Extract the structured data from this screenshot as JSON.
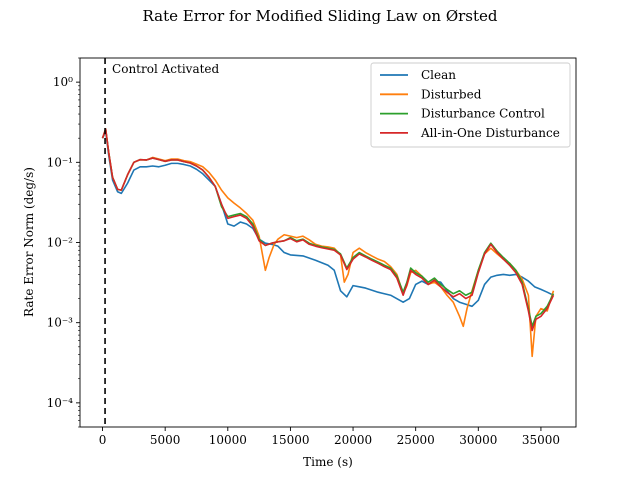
{
  "chart_data": {
    "type": "line",
    "title": "Rate Error for Modified Sliding Law on Ørsted",
    "xlabel": "Time (s)",
    "ylabel": "Rate Error Norm (deg/s)",
    "xlim": [
      -1800,
      37800
    ],
    "ylim": [
      5e-05,
      2.0
    ],
    "yscale": "log",
    "xticks": [
      0,
      5000,
      10000,
      15000,
      20000,
      25000,
      30000,
      35000
    ],
    "xtick_labels": [
      "0",
      "5000",
      "10000",
      "15000",
      "20000",
      "25000",
      "30000",
      "35000"
    ],
    "yticks": [
      0.0001,
      0.001,
      0.01,
      0.1,
      1
    ],
    "ytick_labels": [
      "10⁻⁴",
      "10⁻³",
      "10⁻²",
      "10⁻¹",
      "10⁰"
    ],
    "legend_position": "top-right",
    "grid": false,
    "annotation": {
      "text": "Control Activated",
      "x": 200
    },
    "colors": {
      "Clean": "#1f77b4",
      "Disturbed": "#ff7f0e",
      "Disturbance Control": "#2ca02c",
      "All-in-One Disturbance": "#d62728"
    },
    "series": [
      {
        "name": "Clean",
        "x": [
          0,
          250,
          500,
          800,
          1200,
          1500,
          2000,
          2500,
          3000,
          3500,
          4000,
          4500,
          5000,
          5500,
          6000,
          6500,
          7000,
          7500,
          8000,
          8500,
          9000,
          9500,
          10000,
          10500,
          11000,
          11500,
          12000,
          12500,
          13000,
          13500,
          14000,
          14500,
          15000,
          16000,
          17000,
          18000,
          18500,
          19000,
          19500,
          20000,
          20500,
          21000,
          22000,
          23000,
          24000,
          24500,
          25000,
          25500,
          26000,
          26500,
          27000,
          27500,
          28000,
          28500,
          29000,
          29500,
          30000,
          30500,
          31000,
          31500,
          32000,
          32500,
          33000,
          33500,
          34000,
          34500,
          35000,
          35500,
          36000
        ],
        "y": [
          0.2,
          0.24,
          0.12,
          0.06,
          0.043,
          0.041,
          0.055,
          0.08,
          0.088,
          0.088,
          0.09,
          0.088,
          0.092,
          0.097,
          0.097,
          0.094,
          0.09,
          0.082,
          0.072,
          0.06,
          0.05,
          0.03,
          0.017,
          0.016,
          0.018,
          0.017,
          0.015,
          0.011,
          0.0098,
          0.0095,
          0.009,
          0.0075,
          0.007,
          0.0068,
          0.006,
          0.0052,
          0.0045,
          0.0025,
          0.0021,
          0.0029,
          0.0028,
          0.0027,
          0.0024,
          0.0022,
          0.0018,
          0.002,
          0.003,
          0.0033,
          0.003,
          0.0033,
          0.0032,
          0.0025,
          0.002,
          0.0018,
          0.0017,
          0.0016,
          0.0019,
          0.003,
          0.0037,
          0.0039,
          0.004,
          0.0039,
          0.004,
          0.0037,
          0.0033,
          0.0028,
          0.0026,
          0.0024,
          0.0022
        ]
      },
      {
        "name": "Disturbed",
        "x": [
          0,
          250,
          500,
          800,
          1200,
          1500,
          2000,
          2500,
          3000,
          3500,
          4000,
          4500,
          5000,
          5500,
          6000,
          6500,
          7000,
          7500,
          8000,
          8500,
          9000,
          9500,
          10000,
          10500,
          11000,
          11500,
          12000,
          12500,
          13000,
          13300,
          13700,
          14000,
          14500,
          15000,
          15500,
          16000,
          16500,
          17000,
          17500,
          18000,
          18500,
          19000,
          19300,
          19600,
          20000,
          20500,
          21000,
          21500,
          22000,
          22500,
          23000,
          23500,
          24000,
          24300,
          24600,
          25000,
          25500,
          26000,
          26500,
          27000,
          27500,
          28000,
          28500,
          28800,
          29100,
          29500,
          30000,
          30500,
          31000,
          31500,
          32000,
          32500,
          33000,
          33500,
          34000,
          34300,
          34600,
          35000,
          35500,
          36000
        ],
        "y": [
          0.2,
          0.26,
          0.13,
          0.065,
          0.046,
          0.045,
          0.07,
          0.1,
          0.108,
          0.107,
          0.115,
          0.11,
          0.105,
          0.11,
          0.11,
          0.105,
          0.102,
          0.095,
          0.088,
          0.075,
          0.06,
          0.045,
          0.036,
          0.031,
          0.027,
          0.023,
          0.019,
          0.012,
          0.0045,
          0.0065,
          0.0095,
          0.011,
          0.0125,
          0.012,
          0.0115,
          0.012,
          0.0108,
          0.0095,
          0.009,
          0.0088,
          0.0085,
          0.007,
          0.0032,
          0.004,
          0.0075,
          0.0085,
          0.0075,
          0.0068,
          0.0062,
          0.0058,
          0.005,
          0.004,
          0.0023,
          0.0029,
          0.0042,
          0.0045,
          0.0038,
          0.003,
          0.0032,
          0.0028,
          0.0022,
          0.0018,
          0.0012,
          0.0009,
          0.0015,
          0.0025,
          0.0045,
          0.0072,
          0.0085,
          0.0072,
          0.0062,
          0.0055,
          0.0045,
          0.0035,
          0.0022,
          0.00038,
          0.0012,
          0.0015,
          0.0014,
          0.0025
        ]
      },
      {
        "name": "Disturbance Control",
        "x": [
          0,
          250,
          500,
          800,
          1200,
          1500,
          2000,
          2500,
          3000,
          3500,
          4000,
          4500,
          5000,
          5500,
          6000,
          6500,
          7000,
          7500,
          8000,
          8500,
          9000,
          9500,
          10000,
          10500,
          11000,
          11500,
          12000,
          12500,
          13000,
          13500,
          14000,
          14500,
          15000,
          15500,
          16000,
          16500,
          17000,
          17500,
          18000,
          18500,
          19000,
          19500,
          20000,
          20500,
          21000,
          21500,
          22000,
          22500,
          23000,
          23500,
          24000,
          24300,
          24600,
          25000,
          25500,
          26000,
          26500,
          27000,
          27500,
          28000,
          28500,
          29000,
          29500,
          30000,
          30500,
          31000,
          31500,
          32000,
          32500,
          33000,
          33500,
          34000,
          34300,
          34600,
          35000,
          35500,
          36000
        ],
        "y": [
          0.2,
          0.26,
          0.13,
          0.065,
          0.046,
          0.045,
          0.07,
          0.1,
          0.108,
          0.107,
          0.113,
          0.108,
          0.103,
          0.107,
          0.107,
          0.102,
          0.098,
          0.09,
          0.08,
          0.065,
          0.05,
          0.028,
          0.021,
          0.022,
          0.023,
          0.021,
          0.017,
          0.011,
          0.0092,
          0.0098,
          0.0102,
          0.0105,
          0.0115,
          0.0105,
          0.011,
          0.0098,
          0.0092,
          0.0088,
          0.0085,
          0.0082,
          0.0072,
          0.0048,
          0.0065,
          0.0075,
          0.0068,
          0.0062,
          0.0057,
          0.0052,
          0.0048,
          0.0038,
          0.0024,
          0.0032,
          0.0048,
          0.0042,
          0.0038,
          0.0032,
          0.0036,
          0.003,
          0.0026,
          0.0023,
          0.0025,
          0.0022,
          0.0024,
          0.0045,
          0.0075,
          0.0098,
          0.0078,
          0.0065,
          0.0055,
          0.0045,
          0.0032,
          0.0015,
          0.0009,
          0.0012,
          0.0013,
          0.0016,
          0.0023
        ]
      },
      {
        "name": "All-in-One Disturbance",
        "x": [
          0,
          250,
          500,
          800,
          1200,
          1500,
          2000,
          2500,
          3000,
          3500,
          4000,
          4500,
          5000,
          5500,
          6000,
          6500,
          7000,
          7500,
          8000,
          8500,
          9000,
          9500,
          10000,
          10500,
          11000,
          11500,
          12000,
          12500,
          13000,
          13500,
          14000,
          14500,
          15000,
          15500,
          16000,
          16500,
          17000,
          17500,
          18000,
          18500,
          19000,
          19500,
          20000,
          20500,
          21000,
          21500,
          22000,
          22500,
          23000,
          23500,
          24000,
          24300,
          24600,
          25000,
          25500,
          26000,
          26500,
          27000,
          27500,
          28000,
          28500,
          29000,
          29500,
          30000,
          30500,
          31000,
          31500,
          32000,
          32500,
          33000,
          33500,
          34000,
          34300,
          34600,
          35000,
          35500,
          36000
        ],
        "y": [
          0.2,
          0.26,
          0.13,
          0.065,
          0.046,
          0.045,
          0.07,
          0.1,
          0.108,
          0.107,
          0.113,
          0.108,
          0.103,
          0.107,
          0.107,
          0.102,
          0.098,
          0.09,
          0.08,
          0.065,
          0.05,
          0.03,
          0.02,
          0.021,
          0.022,
          0.02,
          0.016,
          0.0105,
          0.0092,
          0.0098,
          0.0102,
          0.0105,
          0.0112,
          0.0102,
          0.0108,
          0.0095,
          0.009,
          0.0086,
          0.0083,
          0.008,
          0.007,
          0.0046,
          0.0062,
          0.0072,
          0.0066,
          0.006,
          0.0055,
          0.005,
          0.0046,
          0.0036,
          0.0022,
          0.003,
          0.0045,
          0.004,
          0.0036,
          0.003,
          0.0034,
          0.0028,
          0.0024,
          0.0021,
          0.0023,
          0.002,
          0.0022,
          0.0042,
          0.0072,
          0.0095,
          0.0075,
          0.0062,
          0.0052,
          0.0042,
          0.003,
          0.0014,
          0.0008,
          0.0011,
          0.0012,
          0.0015,
          0.0022
        ]
      }
    ]
  }
}
